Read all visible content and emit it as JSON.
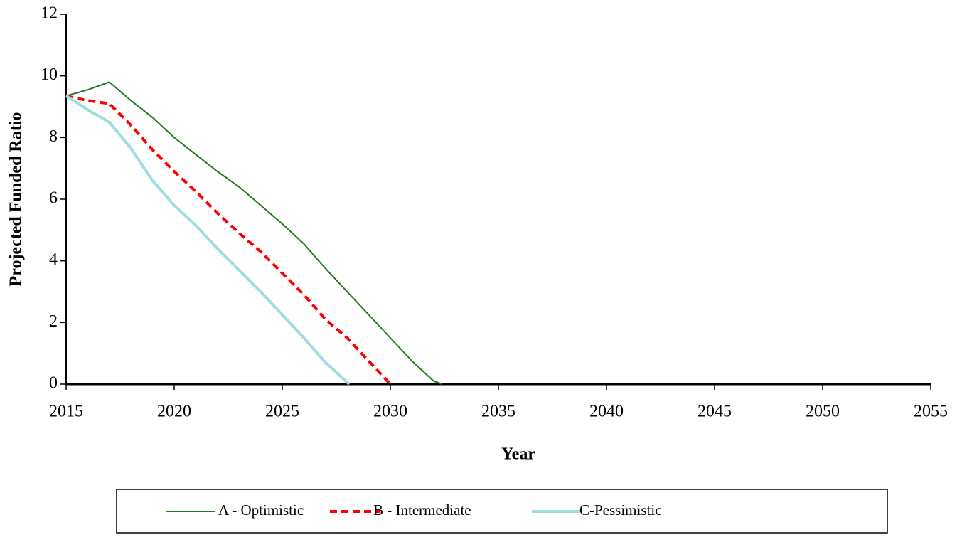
{
  "chart_data": {
    "type": "line",
    "xlabel": "Year",
    "ylabel": "Projected Funded Ratio",
    "xlim": [
      2015,
      2055
    ],
    "xticks": [
      2015,
      2020,
      2025,
      2030,
      2035,
      2040,
      2045,
      2050,
      2055
    ],
    "ylim": [
      0,
      12
    ],
    "yticks": [
      0,
      2,
      4,
      6,
      8,
      10,
      12
    ],
    "grid": false,
    "legend": "bottom",
    "series": [
      {
        "name": "A - Optimistic",
        "color": "#1e7a1e",
        "style": "solid",
        "width": 2,
        "x": [
          2015,
          2016,
          2017,
          2018,
          2019,
          2020,
          2021,
          2022,
          2023,
          2024,
          2025,
          2026,
          2027,
          2028,
          2029,
          2030,
          2031,
          2032,
          2032.4
        ],
        "values": [
          9.35,
          9.55,
          9.8,
          9.2,
          8.65,
          8.0,
          7.45,
          6.9,
          6.4,
          5.8,
          5.2,
          4.55,
          3.75,
          3.0,
          2.25,
          1.5,
          0.75,
          0.1,
          0
        ]
      },
      {
        "name": "B - Intermediate",
        "color": "#ff0000",
        "style": "dashed",
        "width": 4,
        "x": [
          2015,
          2016,
          2017,
          2018,
          2019,
          2020,
          2021,
          2022,
          2023,
          2024,
          2025,
          2026,
          2027,
          2028,
          2029,
          2030
        ],
        "values": [
          9.35,
          9.2,
          9.1,
          8.4,
          7.6,
          6.9,
          6.25,
          5.55,
          4.9,
          4.3,
          3.6,
          2.9,
          2.1,
          1.5,
          0.75,
          0
        ]
      },
      {
        "name": "C-Pessimistic",
        "color": "#9fdde0",
        "style": "solid",
        "width": 4,
        "x": [
          2015,
          2016,
          2017,
          2018,
          2019,
          2020,
          2021,
          2022,
          2023,
          2024,
          2025,
          2026,
          2027,
          2028.1
        ],
        "values": [
          9.35,
          8.9,
          8.5,
          7.65,
          6.6,
          5.8,
          5.15,
          4.4,
          3.7,
          3.0,
          2.25,
          1.5,
          0.7,
          0
        ]
      }
    ]
  }
}
